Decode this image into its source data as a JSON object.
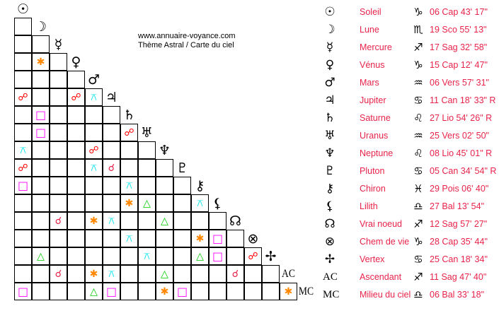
{
  "credit": {
    "line1": "www.annuaire-voyance.com",
    "line2": "Thème Astral / Carte du ciel"
  },
  "aspect_types": {
    "conjunction": {
      "glyph": "☌",
      "color": "#e8234a"
    },
    "opposition": {
      "glyph": "☍",
      "color": "#ff0000"
    },
    "sextile": {
      "glyph": "✱",
      "color": "#ff8800"
    },
    "square": {
      "glyph": "□",
      "color": "#ff00ff"
    },
    "trine": {
      "glyph": "△",
      "color": "#00cc00"
    },
    "quincunx": {
      "glyph": "⚻",
      "color": "#00e5ee"
    }
  },
  "planets": [
    {
      "glyph": "☉",
      "name": "Soleil",
      "sign": "♑",
      "position": "06 Cap 43' 17\""
    },
    {
      "glyph": "☽",
      "name": "Lune",
      "sign": "♏",
      "position": "19 Sco 55' 13\""
    },
    {
      "glyph": "☿",
      "name": "Mercure",
      "sign": "♐",
      "position": "17 Sag 32' 58\""
    },
    {
      "glyph": "♀",
      "name": "Vénus",
      "sign": "♑",
      "position": "15 Cap 12' 47\""
    },
    {
      "glyph": "♂",
      "name": "Mars",
      "sign": "♒",
      "position": "06 Vers 57' 31\""
    },
    {
      "glyph": "♃",
      "name": "Jupiter",
      "sign": "♋",
      "position": "11 Can 18' 33\" R"
    },
    {
      "glyph": "♄",
      "name": "Saturne",
      "sign": "♌",
      "position": "27 Lio 54' 26\" R"
    },
    {
      "glyph": "♅",
      "name": "Uranus",
      "sign": "♒",
      "position": "25 Vers 02' 50\""
    },
    {
      "glyph": "♆",
      "name": "Neptune",
      "sign": "♌",
      "position": "08 Lio 45' 01\" R"
    },
    {
      "glyph": "♇",
      "name": "Pluton",
      "sign": "♋",
      "position": "05 Can 34' 54\" R"
    },
    {
      "glyph": "⚷",
      "name": "Chiron",
      "sign": "♓",
      "position": "29 Pois 06' 40\""
    },
    {
      "glyph": "⚸",
      "name": "Lilith",
      "sign": "♎",
      "position": "27 Bal 13' 54\""
    },
    {
      "glyph": "☊",
      "name": "Vrai noeud",
      "sign": "♐",
      "position": "12 Sag 57' 27\""
    },
    {
      "glyph": "⊗",
      "name": "Chem de vie",
      "sign": "♑",
      "position": "28 Cap 35' 44\""
    },
    {
      "glyph": "✢",
      "name": "Vertex",
      "sign": "♋",
      "position": "25 Can 18' 34\""
    },
    {
      "glyph": "AC",
      "name": "Ascendant",
      "sign": "♐",
      "position": "11 Sag 47' 40\""
    },
    {
      "glyph": "MC",
      "name": "Milieu du ciel",
      "sign": "♎",
      "position": "06 Bal 33' 18\""
    }
  ],
  "aspects": [
    [
      3,
      1,
      "sextile"
    ],
    [
      5,
      0,
      "opposition"
    ],
    [
      5,
      3,
      "opposition"
    ],
    [
      5,
      4,
      "quincunx"
    ],
    [
      6,
      1,
      "square"
    ],
    [
      7,
      1,
      "square"
    ],
    [
      7,
      6,
      "opposition"
    ],
    [
      8,
      0,
      "quincunx"
    ],
    [
      8,
      4,
      "opposition"
    ],
    [
      9,
      0,
      "opposition"
    ],
    [
      9,
      4,
      "quincunx"
    ],
    [
      9,
      5,
      "conjunction"
    ],
    [
      10,
      0,
      "square"
    ],
    [
      10,
      6,
      "quincunx"
    ],
    [
      11,
      6,
      "sextile"
    ],
    [
      11,
      7,
      "trine"
    ],
    [
      11,
      10,
      "quincunx"
    ],
    [
      12,
      2,
      "conjunction"
    ],
    [
      12,
      4,
      "sextile"
    ],
    [
      12,
      5,
      "quincunx"
    ],
    [
      12,
      8,
      "trine"
    ],
    [
      13,
      6,
      "quincunx"
    ],
    [
      13,
      10,
      "sextile"
    ],
    [
      13,
      11,
      "square"
    ],
    [
      14,
      1,
      "trine"
    ],
    [
      14,
      7,
      "quincunx"
    ],
    [
      14,
      10,
      "trine"
    ],
    [
      14,
      11,
      "square"
    ],
    [
      14,
      13,
      "opposition"
    ],
    [
      15,
      2,
      "conjunction"
    ],
    [
      15,
      4,
      "sextile"
    ],
    [
      15,
      5,
      "quincunx"
    ],
    [
      15,
      8,
      "trine"
    ],
    [
      15,
      12,
      "conjunction"
    ],
    [
      16,
      0,
      "square"
    ],
    [
      16,
      4,
      "trine"
    ],
    [
      16,
      5,
      "square"
    ],
    [
      16,
      8,
      "sextile"
    ],
    [
      16,
      9,
      "square"
    ],
    [
      16,
      15,
      "sextile"
    ]
  ]
}
